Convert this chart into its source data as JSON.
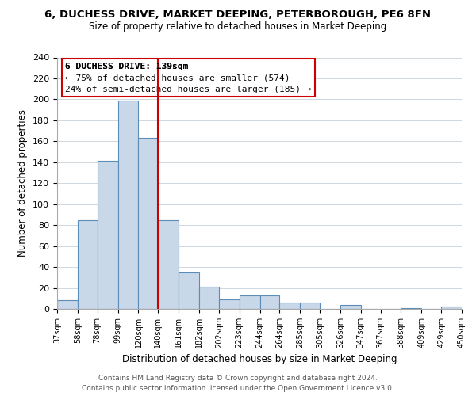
{
  "title": "6, DUCHESS DRIVE, MARKET DEEPING, PETERBOROUGH, PE6 8FN",
  "subtitle": "Size of property relative to detached houses in Market Deeping",
  "xlabel": "Distribution of detached houses by size in Market Deeping",
  "ylabel": "Number of detached properties",
  "bar_color": "#c8d8e8",
  "bar_edge_color": "#5b8db8",
  "bin_edges": [
    37,
    58,
    78,
    99,
    120,
    140,
    161,
    182,
    202,
    223,
    244,
    264,
    285,
    305,
    326,
    347,
    367,
    388,
    409,
    429,
    450
  ],
  "bar_heights": [
    8,
    85,
    141,
    199,
    163,
    85,
    35,
    21,
    9,
    13,
    13,
    6,
    6,
    0,
    4,
    0,
    0,
    1,
    0,
    2
  ],
  "xlim_left": 37,
  "xlim_right": 450,
  "ylim_top": 240,
  "yticks": [
    0,
    20,
    40,
    60,
    80,
    100,
    120,
    140,
    160,
    180,
    200,
    220,
    240
  ],
  "tick_labels": [
    "37sqm",
    "58sqm",
    "78sqm",
    "99sqm",
    "120sqm",
    "140sqm",
    "161sqm",
    "182sqm",
    "202sqm",
    "223sqm",
    "244sqm",
    "264sqm",
    "285sqm",
    "305sqm",
    "326sqm",
    "347sqm",
    "367sqm",
    "388sqm",
    "409sqm",
    "429sqm",
    "450sqm"
  ],
  "vline_x": 140,
  "vline_color": "#cc0000",
  "annotation_title": "6 DUCHESS DRIVE: 139sqm",
  "annotation_line1": "← 75% of detached houses are smaller (574)",
  "annotation_line2": "24% of semi-detached houses are larger (185) →",
  "footer1": "Contains HM Land Registry data © Crown copyright and database right 2024.",
  "footer2": "Contains public sector information licensed under the Open Government Licence v3.0.",
  "background_color": "#ffffff",
  "grid_color": "#d0d8e0"
}
